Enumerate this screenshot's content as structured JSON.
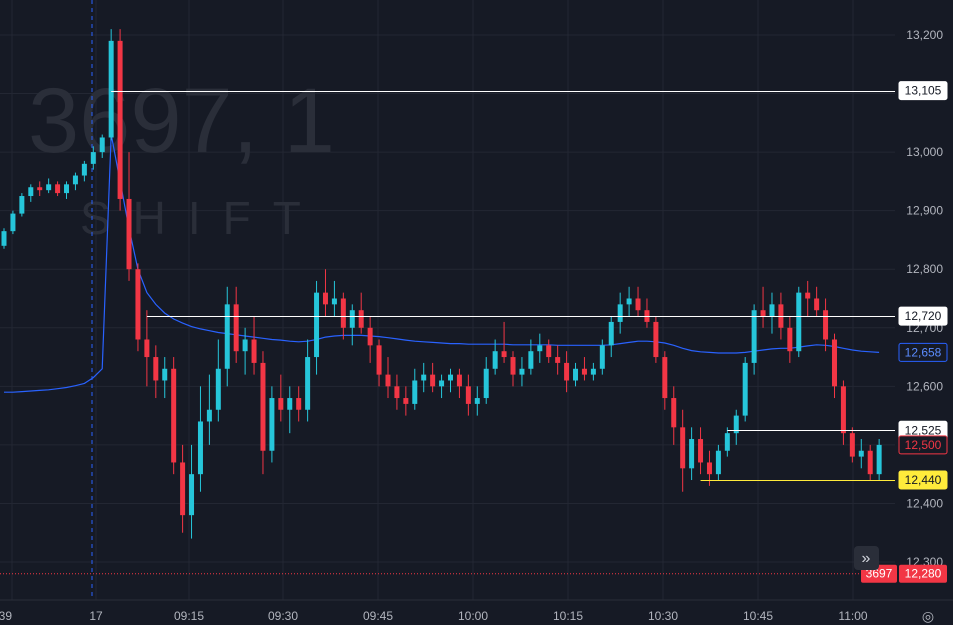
{
  "watermark": {
    "symbol": "3697, 1",
    "name": "SHIFT"
  },
  "colors": {
    "up": "#26c6da",
    "down": "#f23645",
    "ma": "#2962ff",
    "bg": "#161a25",
    "grid": "#232733",
    "text": "#b2b5be",
    "highlight": "#ffeb3b"
  },
  "icons": {
    "expand": "double-chevron-right-icon",
    "settings": "gear-icon"
  },
  "expand_glyph": "»",
  "settings_glyph": "◎",
  "chart_data": {
    "type": "candlestick",
    "ylim": [
      12260,
      13260
    ],
    "y_ticks": [
      "12,300",
      "12,400",
      "12,500",
      "12,600",
      "12,700",
      "12,800",
      "12,900",
      "13,000",
      "13,100",
      "13,200"
    ],
    "x_ticks": [
      ":39",
      "17",
      "09:15",
      "09:30",
      "09:45",
      "10:00",
      "10:15",
      "10:30",
      "10:45",
      "11:00"
    ],
    "session_break": "17",
    "candles": [
      [
        12840,
        12870,
        12835,
        12865
      ],
      [
        12865,
        12900,
        12860,
        12895
      ],
      [
        12895,
        12930,
        12890,
        12925
      ],
      [
        12925,
        12945,
        12915,
        12940
      ],
      [
        12940,
        12950,
        12925,
        12935
      ],
      [
        12935,
        12955,
        12930,
        12945
      ],
      [
        12945,
        12950,
        12925,
        12930
      ],
      [
        12930,
        12950,
        12920,
        12945
      ],
      [
        12945,
        12965,
        12935,
        12960
      ],
      [
        12960,
        12985,
        12950,
        12980
      ],
      [
        12980,
        13010,
        12970,
        13000
      ],
      [
        13000,
        13030,
        12990,
        13025
      ],
      [
        13025,
        13210,
        13020,
        13190
      ],
      [
        13190,
        13210,
        12900,
        12920
      ],
      [
        12920,
        13000,
        12780,
        12800
      ],
      [
        12800,
        12810,
        12660,
        12680
      ],
      [
        12680,
        12730,
        12600,
        12650
      ],
      [
        12650,
        12670,
        12580,
        12610
      ],
      [
        12610,
        12650,
        12580,
        12630
      ],
      [
        12630,
        12650,
        12450,
        12470
      ],
      [
        12470,
        12500,
        12350,
        12380
      ],
      [
        12380,
        12500,
        12340,
        12450
      ],
      [
        12450,
        12600,
        12420,
        12540
      ],
      [
        12540,
        12620,
        12500,
        12560
      ],
      [
        12560,
        12680,
        12540,
        12630
      ],
      [
        12630,
        12770,
        12600,
        12740
      ],
      [
        12740,
        12770,
        12640,
        12660
      ],
      [
        12660,
        12700,
        12620,
        12680
      ],
      [
        12680,
        12720,
        12620,
        12640
      ],
      [
        12640,
        12660,
        12450,
        12490
      ],
      [
        12490,
        12600,
        12470,
        12580
      ],
      [
        12580,
        12620,
        12540,
        12560
      ],
      [
        12560,
        12600,
        12520,
        12580
      ],
      [
        12580,
        12600,
        12540,
        12560
      ],
      [
        12560,
        12680,
        12540,
        12650
      ],
      [
        12650,
        12780,
        12620,
        12760
      ],
      [
        12760,
        12800,
        12720,
        12740
      ],
      [
        12740,
        12780,
        12720,
        12750
      ],
      [
        12750,
        12760,
        12680,
        12700
      ],
      [
        12700,
        12740,
        12670,
        12730
      ],
      [
        12730,
        12760,
        12690,
        12700
      ],
      [
        12700,
        12720,
        12640,
        12670
      ],
      [
        12670,
        12680,
        12600,
        12620
      ],
      [
        12620,
        12650,
        12580,
        12600
      ],
      [
        12600,
        12620,
        12560,
        12580
      ],
      [
        12580,
        12600,
        12550,
        12570
      ],
      [
        12570,
        12630,
        12560,
        12610
      ],
      [
        12610,
        12640,
        12590,
        12620
      ],
      [
        12620,
        12640,
        12590,
        12600
      ],
      [
        12600,
        12620,
        12580,
        12610
      ],
      [
        12610,
        12630,
        12590,
        12620
      ],
      [
        12620,
        12630,
        12580,
        12600
      ],
      [
        12600,
        12620,
        12550,
        12570
      ],
      [
        12570,
        12600,
        12550,
        12580
      ],
      [
        12580,
        12650,
        12570,
        12630
      ],
      [
        12630,
        12680,
        12620,
        12660
      ],
      [
        12660,
        12710,
        12640,
        12650
      ],
      [
        12650,
        12660,
        12600,
        12620
      ],
      [
        12620,
        12650,
        12600,
        12630
      ],
      [
        12630,
        12680,
        12620,
        12660
      ],
      [
        12660,
        12690,
        12640,
        12670
      ],
      [
        12670,
        12680,
        12640,
        12650
      ],
      [
        12650,
        12670,
        12620,
        12640
      ],
      [
        12640,
        12660,
        12590,
        12610
      ],
      [
        12610,
        12640,
        12600,
        12630
      ],
      [
        12630,
        12650,
        12610,
        12620
      ],
      [
        12620,
        12640,
        12610,
        12630
      ],
      [
        12630,
        12680,
        12620,
        12670
      ],
      [
        12670,
        12720,
        12650,
        12710
      ],
      [
        12710,
        12760,
        12690,
        12740
      ],
      [
        12740,
        12770,
        12720,
        12750
      ],
      [
        12750,
        12770,
        12720,
        12730
      ],
      [
        12730,
        12750,
        12700,
        12710
      ],
      [
        12710,
        12720,
        12640,
        12650
      ],
      [
        12650,
        12660,
        12560,
        12580
      ],
      [
        12580,
        12600,
        12500,
        12530
      ],
      [
        12530,
        12560,
        12420,
        12460
      ],
      [
        12460,
        12530,
        12440,
        12510
      ],
      [
        12510,
        12530,
        12450,
        12470
      ],
      [
        12470,
        12490,
        12430,
        12450
      ],
      [
        12450,
        12500,
        12440,
        12490
      ],
      [
        12490,
        12530,
        12480,
        12520
      ],
      [
        12520,
        12560,
        12500,
        12550
      ],
      [
        12550,
        12650,
        12540,
        12640
      ],
      [
        12640,
        12740,
        12620,
        12730
      ],
      [
        12730,
        12770,
        12700,
        12720
      ],
      [
        12720,
        12760,
        12690,
        12740
      ],
      [
        12740,
        12760,
        12680,
        12700
      ],
      [
        12700,
        12720,
        12640,
        12660
      ],
      [
        12660,
        12770,
        12650,
        12760
      ],
      [
        12760,
        12780,
        12720,
        12750
      ],
      [
        12750,
        12770,
        12720,
        12730
      ],
      [
        12730,
        12750,
        12660,
        12680
      ],
      [
        12680,
        12690,
        12580,
        12600
      ],
      [
        12600,
        12610,
        12500,
        12520
      ],
      [
        12520,
        12530,
        12470,
        12480
      ],
      [
        12480,
        12510,
        12460,
        12490
      ],
      [
        12490,
        12500,
        12440,
        12450
      ],
      [
        12450,
        12510,
        12440,
        12500
      ]
    ],
    "moving_average": [
      12590,
      12590,
      12591,
      12592,
      12593,
      12594,
      12596,
      12598,
      12601,
      12605,
      12615,
      12630,
      13030,
      12950,
      12870,
      12800,
      12760,
      12740,
      12725,
      12715,
      12708,
      12702,
      12698,
      12695,
      12692,
      12690,
      12688,
      12686,
      12684,
      12682,
      12680,
      12679,
      12677,
      12676,
      12677,
      12680,
      12684,
      12686,
      12687,
      12687,
      12687,
      12686,
      12685,
      12683,
      12681,
      12679,
      12677,
      12676,
      12675,
      12674,
      12673,
      12673,
      12672,
      12672,
      12672,
      12672,
      12672,
      12671,
      12671,
      12671,
      12671,
      12671,
      12670,
      12670,
      12670,
      12670,
      12670,
      12670,
      12671,
      12673,
      12675,
      12677,
      12677,
      12676,
      12674,
      12670,
      12665,
      12661,
      12659,
      12658,
      12657,
      12657,
      12657,
      12658,
      12660,
      12662,
      12664,
      12665,
      12665,
      12667,
      12669,
      12671,
      12670,
      12668,
      12665,
      12662,
      12660,
      12659,
      12658
    ],
    "levels": [
      {
        "value": 13105,
        "label": "13,105",
        "color": "#ffffff",
        "start_candle": 12
      },
      {
        "value": 12720,
        "label": "12,720",
        "color": "#ffffff",
        "start_candle": 16
      },
      {
        "value": 12525,
        "label": "12,525",
        "color": "#ffffff",
        "start_candle": 81
      },
      {
        "value": 12440,
        "label": "12,440",
        "color": "#ffeb3b",
        "start_candle": 78
      }
    ],
    "ma_last": {
      "value": 12658,
      "label": "12,658"
    },
    "last_price": {
      "value": 12500,
      "label": "12,500"
    },
    "bid": {
      "value": 12280,
      "label": "12,280",
      "symbol": "3697"
    }
  }
}
